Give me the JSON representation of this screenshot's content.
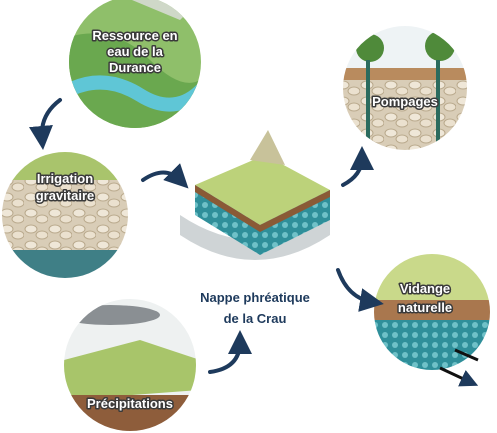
{
  "nodes": [
    {
      "label": [
        "Ressource en",
        "eau de la",
        "Durance"
      ]
    },
    {
      "label": [
        "Irrigation",
        "gravitaire"
      ]
    },
    {
      "label": [
        "Nappe phréatique",
        "de la Crau"
      ]
    },
    {
      "label": [
        "Pompages"
      ]
    },
    {
      "label": [
        "Vidange",
        "naturelle"
      ]
    },
    {
      "label": [
        "Précipitations"
      ]
    }
  ]
}
